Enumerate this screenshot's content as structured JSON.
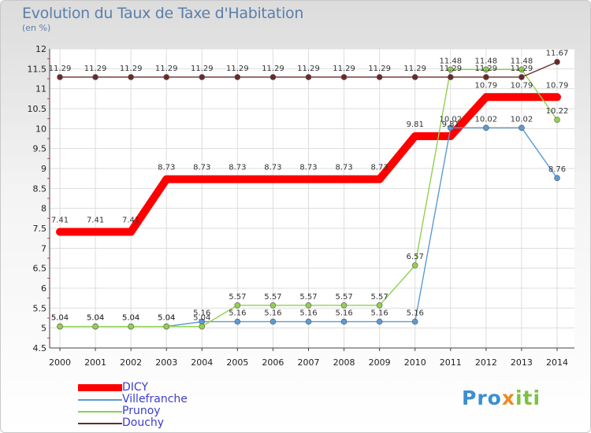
{
  "chart_data": {
    "type": "line",
    "title": "Evolution du Taux de Taxe d'Habitation",
    "subtitle": "(en %)",
    "x": [
      2000,
      2001,
      2002,
      2003,
      2004,
      2005,
      2006,
      2007,
      2008,
      2009,
      2010,
      2011,
      2012,
      2013,
      2014
    ],
    "ylim": [
      4.5,
      12
    ],
    "yticks": [
      4.5,
      5,
      5.5,
      6,
      6.5,
      7,
      7.5,
      8,
      8.5,
      9,
      9.5,
      10,
      10.5,
      11,
      11.5,
      12
    ],
    "grid": true,
    "legend_position": "bottom-left",
    "series": [
      {
        "name": "DICY",
        "color": "#ff0000",
        "thick": true,
        "values": [
          7.41,
          7.41,
          7.41,
          8.73,
          8.73,
          8.73,
          8.73,
          8.73,
          8.73,
          8.73,
          9.81,
          9.81,
          10.79,
          10.79,
          10.79
        ],
        "labels": [
          "7.41",
          "7.41",
          "7.41",
          "8.73",
          "8.73",
          "8.73",
          "8.73",
          "8.73",
          "8.73",
          "8.73",
          "9.81",
          "9.81",
          "10.79",
          "10.79",
          "10.79"
        ]
      },
      {
        "name": "Villefranche",
        "color": "#5b9bd5",
        "thick": false,
        "values": [
          5.04,
          5.04,
          5.04,
          5.04,
          5.16,
          5.16,
          5.16,
          5.16,
          5.16,
          5.16,
          5.16,
          10.02,
          10.02,
          10.02,
          8.76
        ],
        "labels": [
          "5.04",
          "5.04",
          "5.04",
          "5.04",
          "5.16",
          "5.16",
          "5.16",
          "5.16",
          "5.16",
          "5.16",
          "5.16",
          "10.02",
          "10.02",
          "10.02",
          "8.76"
        ]
      },
      {
        "name": "Prunoy",
        "color": "#92d050",
        "thick": false,
        "values": [
          5.04,
          5.04,
          5.04,
          5.04,
          5.04,
          5.57,
          5.57,
          5.57,
          5.57,
          5.57,
          6.57,
          11.48,
          11.48,
          11.48,
          10.22
        ],
        "labels": [
          "5.04",
          "5.04",
          "5.04",
          "5.04",
          "5.04",
          "5.57",
          "5.57",
          "5.57",
          "5.57",
          "5.57",
          "6.57",
          "11.48",
          "11.48",
          "11.48",
          "10.22"
        ]
      },
      {
        "name": "Douchy",
        "color": "#6b2a2a",
        "thick": false,
        "values": [
          11.29,
          11.29,
          11.29,
          11.29,
          11.29,
          11.29,
          11.29,
          11.29,
          11.29,
          11.29,
          11.29,
          11.29,
          11.29,
          11.29,
          11.67
        ],
        "labels": [
          "11.29",
          "11.29",
          "11.29",
          "11.29",
          "11.29",
          "11.29",
          "11.29",
          "11.29",
          "11.29",
          "11.29",
          "11.29",
          "11.29",
          "11.29",
          "11.29",
          "11.67"
        ]
      }
    ]
  },
  "logo": {
    "part1": "Pro",
    "part2": "x",
    "part3": "iti"
  }
}
